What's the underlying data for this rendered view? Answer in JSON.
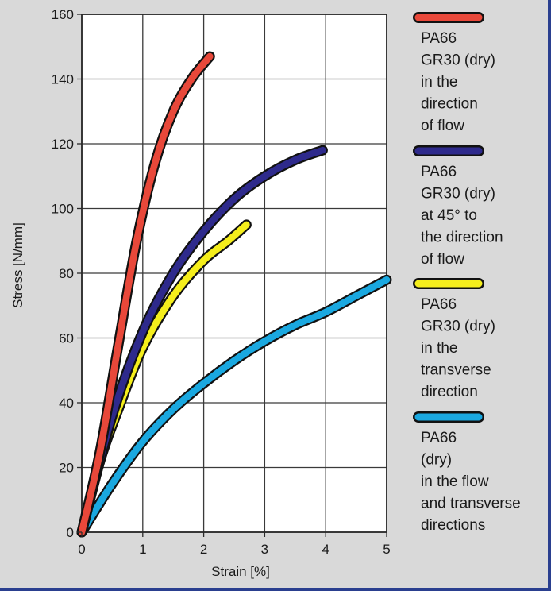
{
  "chart_data": {
    "type": "line",
    "title": "",
    "xlabel": "Strain [%]",
    "ylabel": "Stress [N/mm]",
    "xlim": [
      0,
      5
    ],
    "ylim": [
      0,
      160
    ],
    "xticks": [
      "0",
      "1",
      "2",
      "3",
      "4",
      "5"
    ],
    "yticks": [
      "0",
      "20",
      "40",
      "60",
      "80",
      "100",
      "120",
      "140",
      "160"
    ],
    "grid": true,
    "legend_position": "right",
    "series": [
      {
        "name": "PA66 GR30 (dry) in the direction of flow",
        "legend_lines": [
          "PA66",
          "GR30 (dry)",
          "in the",
          "direction",
          "of flow"
        ],
        "color": "#e8483a",
        "x": [
          0,
          0.3,
          0.6,
          0.9,
          1.2,
          1.5,
          1.8,
          2.1
        ],
        "y": [
          0,
          25,
          58,
          90,
          114,
          130,
          140,
          147
        ]
      },
      {
        "name": "PA66 GR30 (dry) at 45° to the direction of flow",
        "legend_lines": [
          "PA66",
          "GR30 (dry)",
          "at 45° to",
          "the direction",
          "of flow"
        ],
        "color": "#2e2a8c",
        "x": [
          0,
          0.5,
          1.0,
          1.5,
          2.0,
          2.5,
          3.0,
          3.5,
          3.95
        ],
        "y": [
          0,
          36,
          62,
          80,
          93,
          103,
          110,
          115,
          118
        ]
      },
      {
        "name": "PA66 GR30 (dry) in the transverse direction",
        "legend_lines": [
          "PA66",
          "GR30 (dry)",
          "in the",
          "transverse",
          "direction"
        ],
        "color": "#f5ee1c",
        "x": [
          0,
          0.3,
          0.6,
          1.0,
          1.5,
          2.0,
          2.4,
          2.7
        ],
        "y": [
          0,
          22,
          38,
          57,
          73,
          84,
          90,
          95
        ]
      },
      {
        "name": "PA66 (dry) in the flow and transverse directions",
        "legend_lines": [
          "PA66",
          "(dry)",
          "in the flow",
          "and transverse",
          "directions"
        ],
        "color": "#1aa8e0",
        "x": [
          0,
          0.5,
          1.0,
          1.5,
          2.0,
          2.5,
          3.0,
          3.5,
          4.0,
          4.5,
          5.0
        ],
        "y": [
          0,
          15,
          28,
          38,
          46,
          53,
          59,
          64,
          68,
          73,
          78
        ]
      }
    ]
  }
}
